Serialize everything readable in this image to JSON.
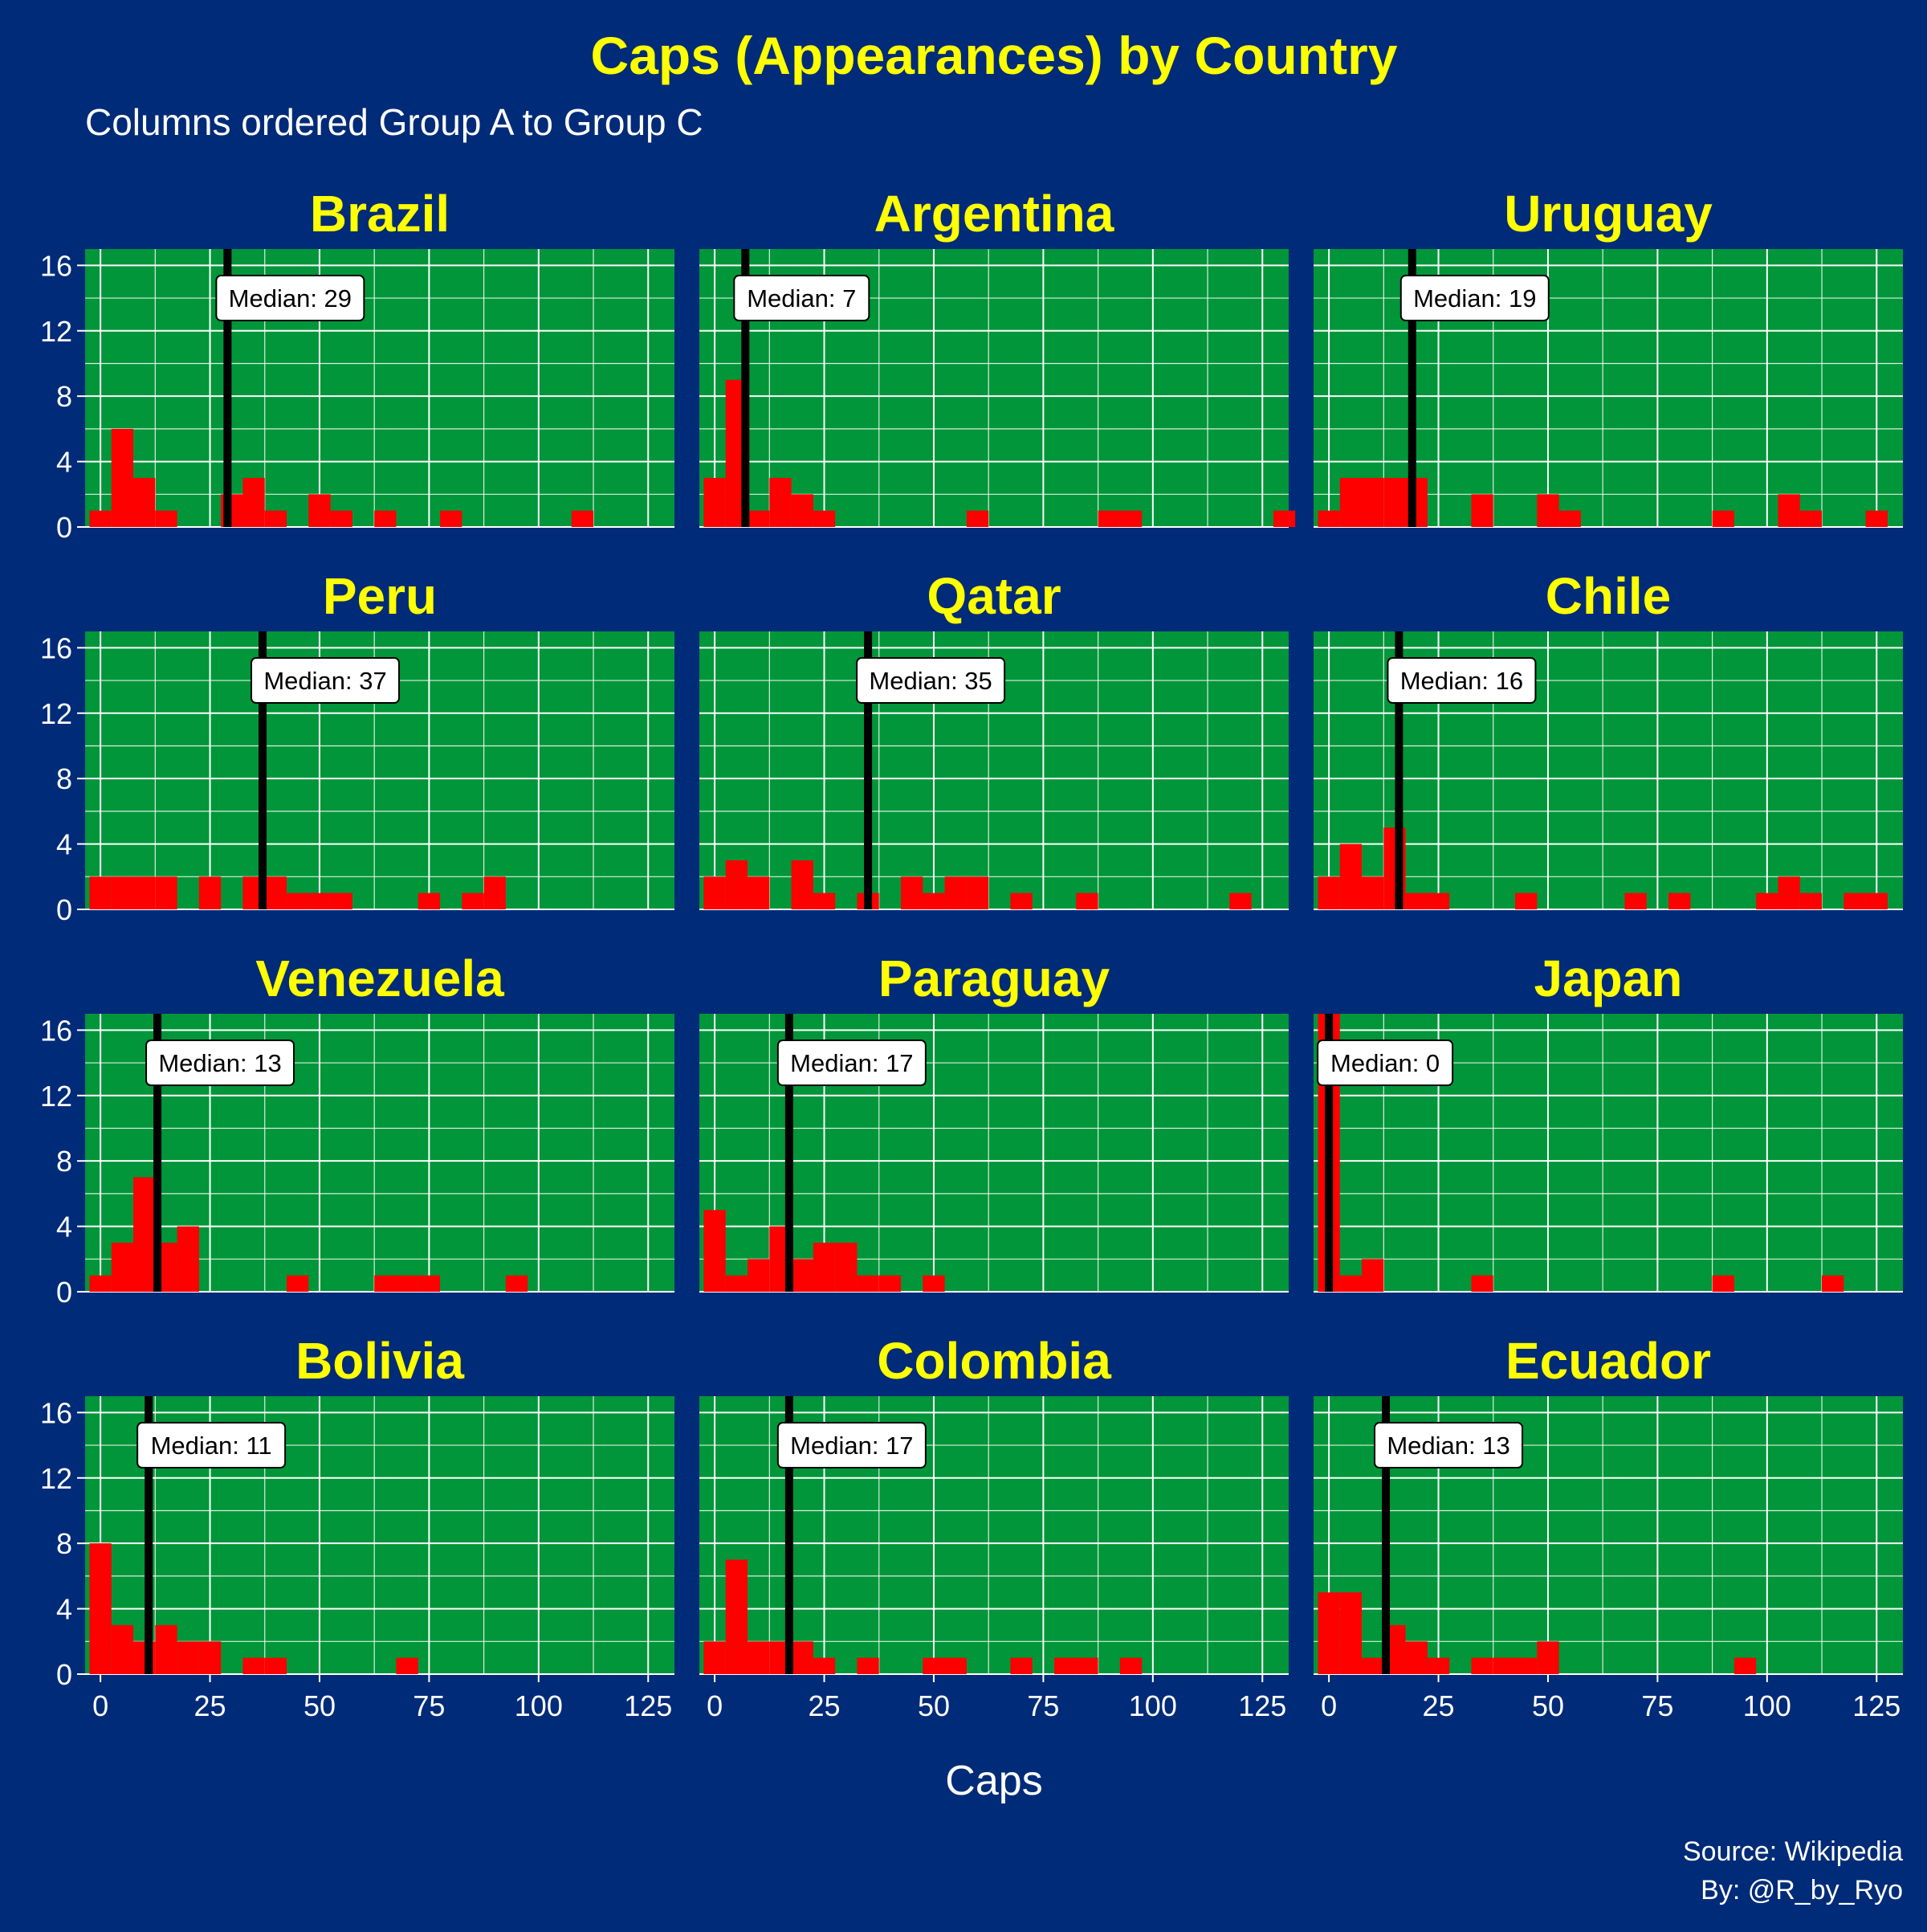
{
  "chart_data": {
    "type": "bar",
    "title": "Caps (Appearances) by Country",
    "subtitle": "Columns ordered Group A to Group C",
    "xlabel": "Caps",
    "ylabel": "",
    "xlim": [
      0,
      125
    ],
    "ylim": [
      0,
      16
    ],
    "xticks": [
      0,
      25,
      50,
      75,
      100,
      125
    ],
    "yticks": [
      0,
      4,
      8,
      12,
      16
    ],
    "bin_width": 5,
    "grid": true,
    "caption": [
      "Source: Wikipedia",
      "By: @R_by_Ryo"
    ],
    "colors": {
      "background": "#002b78",
      "panel": "#009639",
      "bars": "#ff0000",
      "median_line": "#000000",
      "title": "#ffff00",
      "text": "#ffffff",
      "grid": "#ffffff"
    },
    "panels": [
      {
        "country": "Brazil",
        "median": 29,
        "median_label": "Median: 29",
        "bins": [
          [
            -2.5,
            1
          ],
          [
            2.5,
            6
          ],
          [
            7.5,
            3
          ],
          [
            12.5,
            1
          ],
          [
            27.5,
            2
          ],
          [
            32.5,
            3
          ],
          [
            37.5,
            1
          ],
          [
            47.5,
            2
          ],
          [
            52.5,
            1
          ],
          [
            62.5,
            1
          ],
          [
            77.5,
            1
          ],
          [
            107.5,
            1
          ]
        ]
      },
      {
        "country": "Argentina",
        "median": 7,
        "median_label": "Median: 7",
        "bins": [
          [
            -2.5,
            3
          ],
          [
            2.5,
            9
          ],
          [
            7.5,
            1
          ],
          [
            12.5,
            3
          ],
          [
            17.5,
            2
          ],
          [
            22.5,
            1
          ],
          [
            57.5,
            1
          ],
          [
            87.5,
            1
          ],
          [
            92.5,
            1
          ],
          [
            127.5,
            1
          ]
        ]
      },
      {
        "country": "Uruguay",
        "median": 19,
        "median_label": "Median: 19",
        "bins": [
          [
            -2.5,
            1
          ],
          [
            2.5,
            3
          ],
          [
            7.5,
            3
          ],
          [
            12.5,
            3
          ],
          [
            17.5,
            3
          ],
          [
            32.5,
            2
          ],
          [
            47.5,
            2
          ],
          [
            52.5,
            1
          ],
          [
            87.5,
            1
          ],
          [
            102.5,
            2
          ],
          [
            107.5,
            1
          ],
          [
            122.5,
            1
          ]
        ]
      },
      {
        "country": "Peru",
        "median": 37,
        "median_label": "Median: 37",
        "bins": [
          [
            -2.5,
            2
          ],
          [
            2.5,
            2
          ],
          [
            7.5,
            2
          ],
          [
            12.5,
            2
          ],
          [
            22.5,
            2
          ],
          [
            32.5,
            2
          ],
          [
            37.5,
            2
          ],
          [
            42.5,
            1
          ],
          [
            47.5,
            1
          ],
          [
            52.5,
            1
          ],
          [
            72.5,
            1
          ],
          [
            82.5,
            1
          ],
          [
            87.5,
            2
          ]
        ]
      },
      {
        "country": "Qatar",
        "median": 35,
        "median_label": "Median: 35",
        "bins": [
          [
            -2.5,
            2
          ],
          [
            2.5,
            3
          ],
          [
            7.5,
            2
          ],
          [
            17.5,
            3
          ],
          [
            22.5,
            1
          ],
          [
            32.5,
            1
          ],
          [
            42.5,
            2
          ],
          [
            47.5,
            1
          ],
          [
            52.5,
            2
          ],
          [
            57.5,
            2
          ],
          [
            67.5,
            1
          ],
          [
            82.5,
            1
          ],
          [
            117.5,
            1
          ]
        ]
      },
      {
        "country": "Chile",
        "median": 16,
        "median_label": "Median: 16",
        "bins": [
          [
            -2.5,
            2
          ],
          [
            2.5,
            4
          ],
          [
            7.5,
            2
          ],
          [
            12.5,
            5
          ],
          [
            17.5,
            1
          ],
          [
            22.5,
            1
          ],
          [
            42.5,
            1
          ],
          [
            67.5,
            1
          ],
          [
            77.5,
            1
          ],
          [
            97.5,
            1
          ],
          [
            102.5,
            2
          ],
          [
            107.5,
            1
          ],
          [
            117.5,
            1
          ],
          [
            122.5,
            1
          ]
        ]
      },
      {
        "country": "Venezuela",
        "median": 13,
        "median_label": "Median: 13",
        "bins": [
          [
            -2.5,
            1
          ],
          [
            2.5,
            3
          ],
          [
            7.5,
            7
          ],
          [
            12.5,
            3
          ],
          [
            17.5,
            4
          ],
          [
            42.5,
            1
          ],
          [
            62.5,
            1
          ],
          [
            67.5,
            1
          ],
          [
            72.5,
            1
          ],
          [
            92.5,
            1
          ]
        ]
      },
      {
        "country": "Paraguay",
        "median": 17,
        "median_label": "Median: 17",
        "bins": [
          [
            -2.5,
            5
          ],
          [
            2.5,
            1
          ],
          [
            7.5,
            2
          ],
          [
            12.5,
            4
          ],
          [
            17.5,
            2
          ],
          [
            22.5,
            3
          ],
          [
            27.5,
            3
          ],
          [
            32.5,
            1
          ],
          [
            37.5,
            1
          ],
          [
            47.5,
            1
          ]
        ]
      },
      {
        "country": "Japan",
        "median": 0,
        "median_label": "Median: 0",
        "bins": [
          [
            -2.5,
            17
          ],
          [
            2.5,
            1
          ],
          [
            7.5,
            2
          ],
          [
            32.5,
            1
          ],
          [
            87.5,
            1
          ],
          [
            112.5,
            1
          ]
        ]
      },
      {
        "country": "Bolivia",
        "median": 11,
        "median_label": "Median: 11",
        "bins": [
          [
            -2.5,
            8
          ],
          [
            2.5,
            3
          ],
          [
            7.5,
            2
          ],
          [
            12.5,
            3
          ],
          [
            17.5,
            2
          ],
          [
            22.5,
            2
          ],
          [
            32.5,
            1
          ],
          [
            37.5,
            1
          ],
          [
            67.5,
            1
          ]
        ]
      },
      {
        "country": "Colombia",
        "median": 17,
        "median_label": "Median: 17",
        "bins": [
          [
            -2.5,
            2
          ],
          [
            2.5,
            7
          ],
          [
            7.5,
            2
          ],
          [
            12.5,
            2
          ],
          [
            17.5,
            2
          ],
          [
            22.5,
            1
          ],
          [
            32.5,
            1
          ],
          [
            47.5,
            1
          ],
          [
            52.5,
            1
          ],
          [
            67.5,
            1
          ],
          [
            77.5,
            1
          ],
          [
            82.5,
            1
          ],
          [
            92.5,
            1
          ]
        ]
      },
      {
        "country": "Ecuador",
        "median": 13,
        "median_label": "Median: 13",
        "bins": [
          [
            -2.5,
            5
          ],
          [
            2.5,
            5
          ],
          [
            7.5,
            1
          ],
          [
            12.5,
            3
          ],
          [
            17.5,
            2
          ],
          [
            22.5,
            1
          ],
          [
            32.5,
            1
          ],
          [
            37.5,
            1
          ],
          [
            42.5,
            1
          ],
          [
            47.5,
            2
          ],
          [
            92.5,
            1
          ]
        ]
      }
    ]
  }
}
